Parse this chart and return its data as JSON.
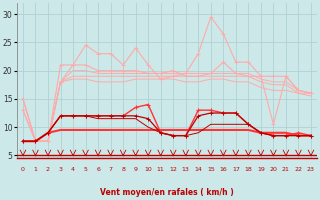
{
  "x": [
    0,
    1,
    2,
    3,
    4,
    5,
    6,
    7,
    8,
    9,
    10,
    11,
    12,
    13,
    14,
    15,
    16,
    17,
    18,
    19,
    20,
    21,
    22,
    23
  ],
  "line_pink1": [
    13,
    7.5,
    7.5,
    21,
    21,
    24.5,
    23,
    23,
    21,
    24,
    21,
    18.5,
    19,
    19.5,
    23,
    29.5,
    26.5,
    21.5,
    21.5,
    19,
    10.5,
    19,
    16.5,
    16
  ],
  "line_pink2": [
    15,
    7.5,
    7.5,
    18,
    21,
    21,
    20,
    20,
    20,
    20,
    19.5,
    19.5,
    20,
    19,
    19,
    19.5,
    21.5,
    19.5,
    19,
    19,
    19,
    19,
    16.5,
    16
  ],
  "line_pink3": [
    15,
    7.5,
    7.5,
    18,
    20,
    20,
    19.5,
    19.5,
    19.5,
    19.5,
    19.5,
    19.5,
    19.5,
    19.5,
    19.5,
    19.5,
    19.5,
    19.5,
    19.5,
    18.5,
    18,
    18,
    16.5,
    16
  ],
  "line_pink4": [
    15,
    7.5,
    7.5,
    18,
    19,
    19,
    19,
    19,
    19,
    19,
    19,
    19,
    19,
    19,
    19,
    19,
    19,
    19,
    19,
    18,
    17.5,
    17.5,
    16,
    16
  ],
  "line_pink5": [
    13,
    7.5,
    7.5,
    18,
    18.5,
    18.5,
    18,
    18,
    18,
    18.5,
    18.5,
    18.5,
    18.5,
    18,
    18,
    18.5,
    18.5,
    18,
    18,
    17,
    16.5,
    16.5,
    16,
    15.5
  ],
  "line_red_rafale": [
    7.5,
    7.5,
    9,
    12,
    12,
    12,
    12,
    12,
    12,
    13.5,
    14,
    9,
    8.5,
    8.5,
    13,
    13,
    12.5,
    12.5,
    10.5,
    9,
    8.5,
    8.5,
    9,
    8.5
  ],
  "line_red_flat": [
    7.5,
    7.5,
    9,
    9.5,
    9.5,
    9.5,
    9.5,
    9.5,
    9.5,
    9.5,
    9.5,
    9.5,
    9.5,
    9.5,
    9.5,
    9.5,
    9.5,
    9.5,
    9.5,
    9,
    9,
    9,
    8.5,
    8.5
  ],
  "line_darkred1": [
    7.5,
    7.5,
    9,
    12,
    12,
    12,
    12,
    12,
    12,
    12,
    11.5,
    9,
    8.5,
    8.5,
    12,
    12.5,
    12.5,
    12.5,
    10.5,
    9,
    8.5,
    8.5,
    8.5,
    8.5
  ],
  "line_darkred2": [
    7.5,
    7.5,
    9,
    12,
    12,
    12,
    11.5,
    11.5,
    11.5,
    11.5,
    10,
    9,
    8.5,
    8.5,
    9,
    10.5,
    10.5,
    10.5,
    10.5,
    9,
    8.5,
    8.5,
    8.5,
    8.5
  ],
  "bg_color": "#cce8e8",
  "grid_color": "#aacece",
  "color_lightpink": "#ffaaaa",
  "color_pink": "#ff8888",
  "color_red": "#ff3333",
  "color_darkred": "#bb0000",
  "xlabel": "Vent moyen/en rafales ( km/h )",
  "yticks": [
    5,
    10,
    15,
    20,
    25,
    30
  ],
  "xlim": [
    -0.5,
    23.5
  ],
  "ylim": [
    4.5,
    32
  ]
}
